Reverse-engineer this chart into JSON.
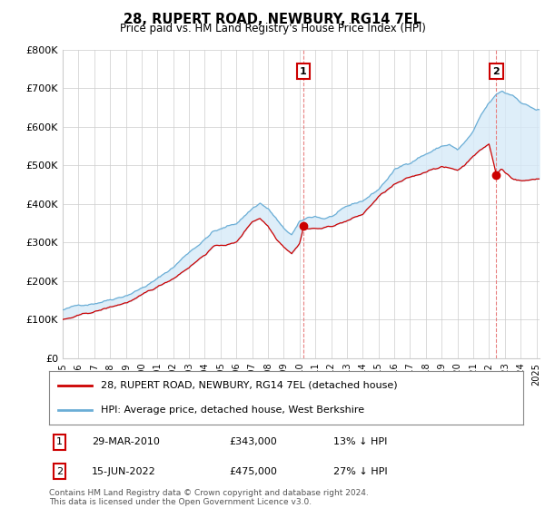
{
  "title": "28, RUPERT ROAD, NEWBURY, RG14 7EL",
  "subtitle": "Price paid vs. HM Land Registry's House Price Index (HPI)",
  "ylabel_ticks": [
    "£0",
    "£100K",
    "£200K",
    "£300K",
    "£400K",
    "£500K",
    "£600K",
    "£700K",
    "£800K"
  ],
  "ylim": [
    0,
    800000
  ],
  "xlim_start": 1995.0,
  "xlim_end": 2025.2,
  "marker1_x": 2010.24,
  "marker1_y": 343000,
  "marker1_label": "1",
  "marker2_x": 2022.46,
  "marker2_y": 475000,
  "marker2_label": "2",
  "legend_line1": "28, RUPERT ROAD, NEWBURY, RG14 7EL (detached house)",
  "legend_line2": "HPI: Average price, detached house, West Berkshire",
  "table_row1": [
    "1",
    "29-MAR-2010",
    "£343,000",
    "13% ↓ HPI"
  ],
  "table_row2": [
    "2",
    "15-JUN-2022",
    "£475,000",
    "27% ↓ HPI"
  ],
  "footer": "Contains HM Land Registry data © Crown copyright and database right 2024.\nThis data is licensed under the Open Government Licence v3.0.",
  "hpi_color": "#6baed6",
  "hpi_fill_color": "#d6eaf8",
  "price_color": "#cc0000",
  "dashed_line_color": "#e88080",
  "background_color": "#ffffff",
  "grid_color": "#cccccc",
  "annotation_box_color": "#cc0000",
  "hpi_anchors_years": [
    1995.0,
    1996.0,
    1997.0,
    1998.0,
    1999.0,
    2000.0,
    2001.0,
    2002.0,
    2003.0,
    2004.0,
    2004.5,
    2005.0,
    2006.0,
    2007.0,
    2007.5,
    2008.0,
    2008.5,
    2009.0,
    2009.5,
    2010.0,
    2010.5,
    2011.0,
    2011.5,
    2012.0,
    2013.0,
    2014.0,
    2015.0,
    2016.0,
    2017.0,
    2017.5,
    2018.0,
    2018.5,
    2019.0,
    2019.5,
    2020.0,
    2020.5,
    2021.0,
    2021.5,
    2022.0,
    2022.46,
    2022.8,
    2023.0,
    2023.5,
    2024.0,
    2024.5,
    2025.0
  ],
  "hpi_anchors_vals": [
    125000,
    135000,
    145000,
    158000,
    172000,
    192000,
    215000,
    245000,
    285000,
    320000,
    340000,
    345000,
    360000,
    400000,
    415000,
    400000,
    375000,
    345000,
    330000,
    360000,
    370000,
    375000,
    370000,
    375000,
    395000,
    410000,
    440000,
    490000,
    510000,
    525000,
    535000,
    545000,
    555000,
    560000,
    545000,
    565000,
    590000,
    630000,
    660000,
    680000,
    690000,
    685000,
    680000,
    665000,
    655000,
    645000
  ],
  "price_anchors_years": [
    1995.0,
    1996.0,
    1997.0,
    1998.0,
    1999.0,
    2000.0,
    2001.0,
    2002.0,
    2003.0,
    2004.0,
    2004.5,
    2005.0,
    2006.0,
    2007.0,
    2007.5,
    2008.0,
    2008.5,
    2009.0,
    2009.5,
    2010.0,
    2010.24,
    2010.5,
    2011.0,
    2011.5,
    2012.0,
    2013.0,
    2014.0,
    2015.0,
    2016.0,
    2017.0,
    2017.5,
    2018.0,
    2018.5,
    2019.0,
    2019.5,
    2020.0,
    2020.5,
    2021.0,
    2021.5,
    2022.0,
    2022.46,
    2022.8,
    2023.0,
    2023.5,
    2024.0,
    2024.5,
    2025.0
  ],
  "price_anchors_vals": [
    100000,
    108000,
    117000,
    128000,
    140000,
    156000,
    176000,
    200000,
    232000,
    265000,
    285000,
    288000,
    295000,
    350000,
    360000,
    340000,
    310000,
    290000,
    275000,
    300000,
    343000,
    340000,
    340000,
    340000,
    345000,
    360000,
    375000,
    420000,
    450000,
    465000,
    470000,
    480000,
    490000,
    495000,
    490000,
    485000,
    500000,
    525000,
    540000,
    555000,
    475000,
    490000,
    480000,
    465000,
    460000,
    460000,
    465000
  ]
}
